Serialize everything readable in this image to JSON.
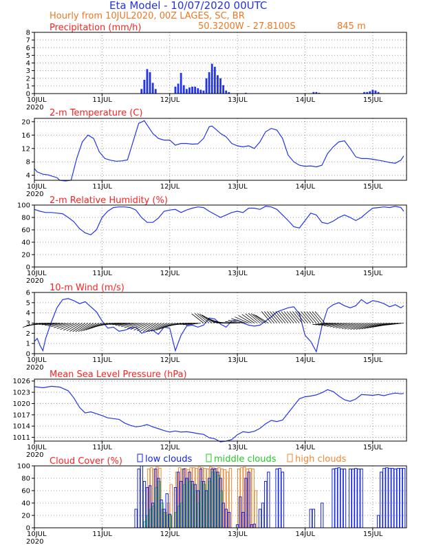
{
  "header": {
    "title": "Eta Model - 10/07/2020 00UTC",
    "subtitle": "Hourly from 10JUL2020, 00Z  LAGES, SC, BR",
    "coords": "50.3200W - 27.8100S",
    "elevation": "845  m"
  },
  "colors": {
    "title": "#2233dd",
    "subtitle": "#ee7722",
    "panel_title": "#ff2020",
    "series": "#2233ee",
    "low": "#1122ee",
    "middle": "#22cc22",
    "high": "#ee8833"
  },
  "x_axis": {
    "labels": [
      "10JUL",
      "11JUL",
      "12JUL",
      "13JUL",
      "14JUL",
      "15JUL"
    ],
    "year": "2020",
    "hours": 132
  },
  "chart_data": [
    {
      "id": "precip",
      "type": "bar",
      "title": "Precipitation (mm/h)",
      "unit": "mm/h",
      "ylim": [
        0,
        8
      ],
      "yticks": [
        "0",
        "1",
        "2",
        "3",
        "4",
        "5",
        "6",
        "7",
        "8"
      ],
      "ytick_values": [
        0,
        1,
        2,
        3,
        4,
        5,
        6,
        7,
        8
      ],
      "x_hours": [
        38,
        39,
        40,
        41,
        42,
        43,
        50,
        51,
        52,
        53,
        54,
        55,
        56,
        57,
        58,
        59,
        60,
        61,
        62,
        63,
        64,
        65,
        66,
        67,
        68,
        69,
        75,
        99,
        100,
        101,
        117,
        118,
        119,
        120,
        121,
        122
      ],
      "values": [
        0.6,
        1.8,
        3.2,
        2.8,
        1.4,
        0.6,
        0.9,
        1.3,
        2.7,
        1.1,
        0.6,
        0.8,
        0.9,
        0.9,
        0.7,
        0.5,
        0.4,
        2.0,
        2.8,
        3.9,
        3.5,
        2.4,
        2.0,
        1.1,
        0.4,
        0.2,
        0.1,
        0.2,
        0.2,
        0.1,
        0.2,
        0.2,
        0.3,
        0.5,
        0.4,
        0.2
      ]
    },
    {
      "id": "temp",
      "type": "line",
      "title": "2-m Temperature (C)",
      "unit": "C",
      "ylim": [
        2.5,
        21
      ],
      "yticks": [
        "4",
        "8",
        "12",
        "16",
        "20"
      ],
      "ytick_values": [
        4,
        8,
        12,
        16,
        20
      ],
      "x": [
        0,
        1,
        3,
        5,
        6,
        8,
        9,
        11,
        13,
        15,
        17,
        19,
        21,
        23,
        25,
        27,
        29,
        31,
        33,
        35,
        37,
        39,
        40,
        42,
        44,
        46,
        48,
        50,
        52,
        54,
        56,
        58,
        60,
        62,
        63,
        64,
        66,
        68,
        70,
        72,
        74,
        76,
        78,
        80,
        82,
        84,
        86,
        88,
        90,
        92,
        94,
        96,
        98,
        100,
        102,
        104,
        106,
        108,
        110,
        112,
        114,
        116,
        118,
        120,
        122,
        124,
        126,
        128,
        130,
        131
      ],
      "values": [
        6,
        5,
        4.3,
        4.1,
        3.8,
        3.3,
        2.5,
        2.3,
        2.5,
        9,
        14,
        16,
        15,
        11,
        9,
        8.5,
        8.2,
        8.3,
        8.6,
        14,
        19.5,
        20.3,
        19,
        16.5,
        15,
        14.5,
        14.5,
        13,
        13.5,
        13.5,
        13.3,
        13.4,
        15,
        18.5,
        18.7,
        18,
        16.5,
        15.5,
        13.5,
        12.8,
        12.5,
        12.8,
        12,
        14,
        17,
        18,
        17.5,
        15,
        10,
        8,
        7,
        6.7,
        6.8,
        6.5,
        7,
        10.5,
        12.5,
        14,
        14.3,
        12,
        9.5,
        9,
        9,
        8.8,
        8.5,
        8.2,
        7.8,
        7.6,
        8.5,
        9.8
      ]
    },
    {
      "id": "rh",
      "type": "line",
      "title": "2-m Relative Humidity (%)",
      "unit": "%",
      "ylim": [
        0,
        100
      ],
      "yticks": [
        "0",
        "20",
        "40",
        "60",
        "80",
        "100"
      ],
      "ytick_values": [
        0,
        20,
        40,
        60,
        80,
        100
      ],
      "x": [
        0,
        2,
        4,
        6,
        8,
        10,
        12,
        14,
        16,
        18,
        20,
        22,
        24,
        26,
        28,
        30,
        32,
        34,
        36,
        38,
        40,
        42,
        44,
        46,
        48,
        50,
        52,
        54,
        56,
        58,
        60,
        62,
        64,
        66,
        68,
        70,
        72,
        74,
        76,
        78,
        80,
        82,
        84,
        86,
        88,
        90,
        92,
        94,
        96,
        98,
        100,
        102,
        104,
        106,
        108,
        110,
        112,
        114,
        116,
        118,
        120,
        122,
        124,
        126,
        128,
        130,
        131
      ],
      "values": [
        93,
        90,
        88,
        88,
        87,
        86,
        80,
        73,
        62,
        55,
        52,
        60,
        80,
        90,
        96,
        97,
        97,
        96,
        92,
        80,
        72,
        72,
        79,
        90,
        92,
        93,
        88,
        92,
        95,
        97,
        96,
        90,
        85,
        80,
        84,
        88,
        90,
        88,
        95,
        95,
        93,
        98,
        97,
        93,
        84,
        75,
        65,
        63,
        75,
        87,
        84,
        72,
        70,
        74,
        80,
        84,
        80,
        75,
        80,
        88,
        95,
        96,
        97,
        96,
        98,
        96,
        90
      ]
    },
    {
      "id": "wind",
      "type": "line+barbs",
      "title": "10-m Wind (m/s)",
      "unit": "m/s",
      "ylim": [
        0,
        6
      ],
      "yticks": [
        "0",
        "1",
        "2",
        "3",
        "4",
        "5",
        "6"
      ],
      "ytick_values": [
        0,
        1,
        2,
        3,
        4,
        5,
        6
      ],
      "x": [
        0,
        1,
        2,
        3,
        4,
        6,
        8,
        10,
        12,
        14,
        16,
        18,
        20,
        22,
        24,
        26,
        28,
        30,
        32,
        34,
        36,
        38,
        40,
        42,
        44,
        46,
        48,
        50,
        52,
        54,
        56,
        58,
        60,
        62,
        64,
        66,
        68,
        70,
        72,
        74,
        76,
        78,
        80,
        82,
        84,
        86,
        88,
        90,
        92,
        94,
        96,
        98,
        100,
        102,
        104,
        106,
        108,
        110,
        112,
        114,
        116,
        118,
        120,
        122,
        124,
        126,
        128,
        130,
        131
      ],
      "values": [
        1.2,
        1.5,
        0.8,
        0.3,
        1.5,
        3.1,
        4.5,
        5.3,
        5.4,
        5.2,
        4.9,
        5.1,
        4.6,
        4.1,
        3.2,
        2.5,
        2.6,
        2.2,
        2.3,
        2.5,
        2.6,
        2.0,
        2.2,
        2.3,
        1.9,
        2.6,
        2.5,
        0.3,
        1.8,
        2.7,
        2.8,
        2.6,
        2.8,
        3.5,
        3.4,
        2.9,
        2.6,
        3.2,
        3.3,
        3.0,
        2.8,
        2.7,
        2.8,
        3.2,
        3.6,
        4.1,
        4.3,
        4.5,
        4.6,
        3.9,
        1.8,
        1.2,
        0.2,
        2.7,
        4.4,
        4.8,
        5.0,
        4.7,
        4.5,
        4.7,
        5.3,
        4.9,
        5.2,
        5.1,
        4.9,
        4.6,
        4.8,
        4.5,
        4.7
      ]
    },
    {
      "id": "mslp",
      "type": "line",
      "title": "Mean Sea Level Pressure (hPa)",
      "unit": "hPa",
      "ylim": [
        1010,
        1026.5
      ],
      "yticks": [
        "1011",
        "1014",
        "1017",
        "1020",
        "1023",
        "1026"
      ],
      "ytick_values": [
        1011,
        1014,
        1017,
        1020,
        1023,
        1026
      ],
      "x": [
        0,
        3,
        6,
        9,
        12,
        14,
        16,
        18,
        20,
        22,
        24,
        26,
        28,
        30,
        32,
        34,
        36,
        38,
        40,
        42,
        44,
        46,
        48,
        50,
        52,
        54,
        56,
        58,
        60,
        62,
        64,
        66,
        68,
        70,
        72,
        74,
        76,
        78,
        80,
        82,
        84,
        86,
        88,
        90,
        92,
        94,
        96,
        98,
        100,
        102,
        104,
        106,
        108,
        110,
        112,
        114,
        116,
        118,
        120,
        122,
        124,
        126,
        128,
        130,
        131
      ],
      "values": [
        1024.5,
        1024.2,
        1024.6,
        1024.4,
        1023.4,
        1021.5,
        1019,
        1017.5,
        1017.8,
        1017.3,
        1016.8,
        1016.2,
        1016,
        1015.8,
        1014.8,
        1014.2,
        1013.8,
        1014,
        1014.4,
        1013.8,
        1013.3,
        1012.8,
        1012.4,
        1012.7,
        1012.4,
        1012.5,
        1012.3,
        1012,
        1011.8,
        1010.9,
        1010.6,
        1009.8,
        1010,
        1010.4,
        1011.7,
        1012.5,
        1012.3,
        1012.6,
        1013.4,
        1014.6,
        1015.5,
        1015.2,
        1015.6,
        1017.5,
        1019.4,
        1021.3,
        1021.8,
        1022,
        1022.3,
        1022.9,
        1023.7,
        1023.2,
        1022,
        1021,
        1020.6,
        1021.2,
        1022.4,
        1022.3,
        1022.2,
        1022.4,
        1022.1,
        1022.5,
        1022.8,
        1022.6,
        1022.7
      ]
    },
    {
      "id": "cloud",
      "type": "bar",
      "title": "Cloud Cover (%)",
      "unit": "%",
      "ylim": [
        0,
        100
      ],
      "yticks": [
        "0",
        "20",
        "40",
        "60",
        "80",
        "100"
      ],
      "ytick_values": [
        0,
        20,
        40,
        60,
        80,
        100
      ],
      "legend": {
        "low": "low clouds",
        "middle": "middle clouds",
        "high": "high clouds"
      },
      "x_hours": [
        36,
        37,
        38,
        39,
        40,
        41,
        42,
        43,
        44,
        45,
        46,
        47,
        48,
        50,
        51,
        52,
        53,
        54,
        55,
        56,
        57,
        58,
        59,
        60,
        61,
        62,
        63,
        64,
        65,
        66,
        67,
        68,
        69,
        72,
        73,
        74,
        75,
        76,
        77,
        78,
        80,
        81,
        82,
        83,
        86,
        87,
        88,
        98,
        99,
        102,
        106,
        107,
        108,
        109,
        110,
        112,
        113,
        114,
        115,
        116,
        122,
        123,
        124,
        125,
        126,
        127,
        128,
        129,
        130,
        131
      ],
      "series": [
        {
          "name": "low",
          "values": [
            30,
            95,
            100,
            75,
            65,
            68,
            40,
            95,
            80,
            45,
            30,
            55,
            22,
            65,
            90,
            75,
            95,
            80,
            90,
            75,
            70,
            60,
            95,
            75,
            60,
            80,
            95,
            95,
            90,
            80,
            40,
            30,
            25,
            5,
            50,
            25,
            80,
            90,
            5,
            6,
            30,
            40,
            75,
            90,
            95,
            96,
            90,
            30,
            30,
            40,
            95,
            96,
            97,
            95,
            95,
            95,
            95,
            96,
            95,
            95,
            20,
            90,
            96,
            97,
            96,
            96,
            95,
            96,
            96,
            96
          ]
        },
        {
          "name": "middle",
          "values": [
            0,
            0,
            0,
            10,
            20,
            30,
            35,
            65,
            75,
            40,
            25,
            20,
            20,
            25,
            35,
            40,
            70,
            80,
            75,
            70,
            60,
            40,
            75,
            70,
            60,
            75,
            90,
            90,
            85,
            60,
            0,
            0,
            0,
            0,
            0,
            0,
            0,
            0,
            0,
            0,
            0,
            0,
            0,
            0,
            0,
            0,
            0,
            0,
            0,
            0,
            0,
            0,
            0,
            0,
            0,
            0,
            0,
            0,
            0,
            0,
            0,
            0,
            0,
            0,
            0,
            0,
            0,
            0,
            0,
            0
          ]
        },
        {
          "name": "high",
          "values": [
            0,
            0,
            0,
            0,
            95,
            97,
            95,
            98,
            96,
            30,
            25,
            40,
            70,
            90,
            97,
            95,
            96,
            94,
            97,
            97,
            96,
            98,
            97,
            96,
            95,
            98,
            97,
            96,
            97,
            95,
            94,
            90,
            96,
            95,
            97,
            98,
            95,
            96,
            95,
            60,
            0,
            0,
            0,
            0,
            0,
            0,
            0,
            0,
            0,
            0,
            0,
            0,
            0,
            0,
            0,
            0,
            0,
            0,
            0,
            0,
            0,
            0,
            0,
            0,
            0,
            0,
            0,
            0,
            0,
            0
          ]
        }
      ]
    }
  ]
}
